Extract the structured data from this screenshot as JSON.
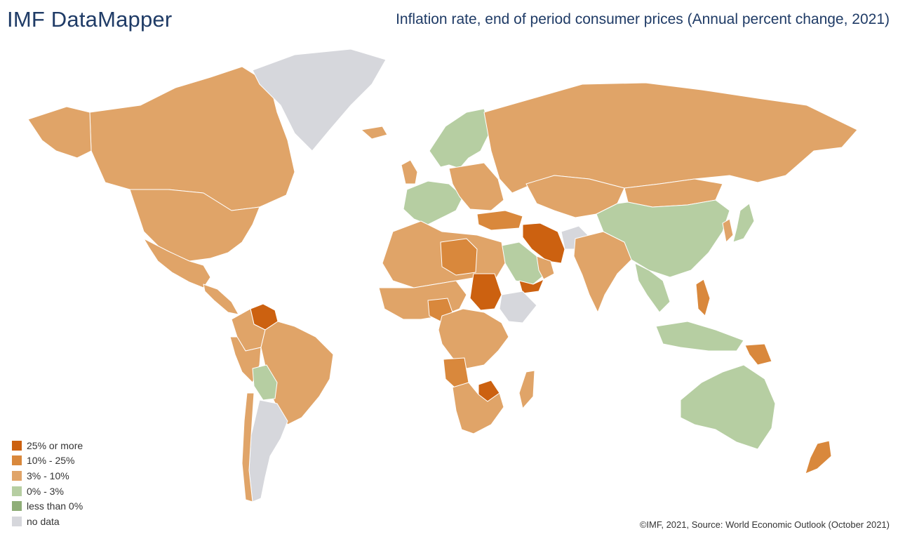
{
  "header": {
    "brand": "IMF DataMapper",
    "title": "Inflation rate, end of period consumer prices (Annual percent change, 2021)"
  },
  "colors": {
    "25_or_more": "#cc6110",
    "10_to_25": "#d9883c",
    "3_to_10": "#e0a468",
    "0_to_3": "#b6cea2",
    "less_than_0": "#8fae78",
    "no_data": "#d6d7dc"
  },
  "legend": {
    "items": [
      {
        "label": "25% or more",
        "color_key": "25_or_more"
      },
      {
        "label": "10% - 25%",
        "color_key": "10_to_25"
      },
      {
        "label": "3% - 10%",
        "color_key": "3_to_10"
      },
      {
        "label": "0% - 3%",
        "color_key": "0_to_3"
      },
      {
        "label": "less than 0%",
        "color_key": "less_than_0"
      },
      {
        "label": "no data",
        "color_key": "no_data"
      }
    ]
  },
  "footer": {
    "credit": "©IMF, 2021, Source: World Economic Outlook (October 2021)"
  }
}
